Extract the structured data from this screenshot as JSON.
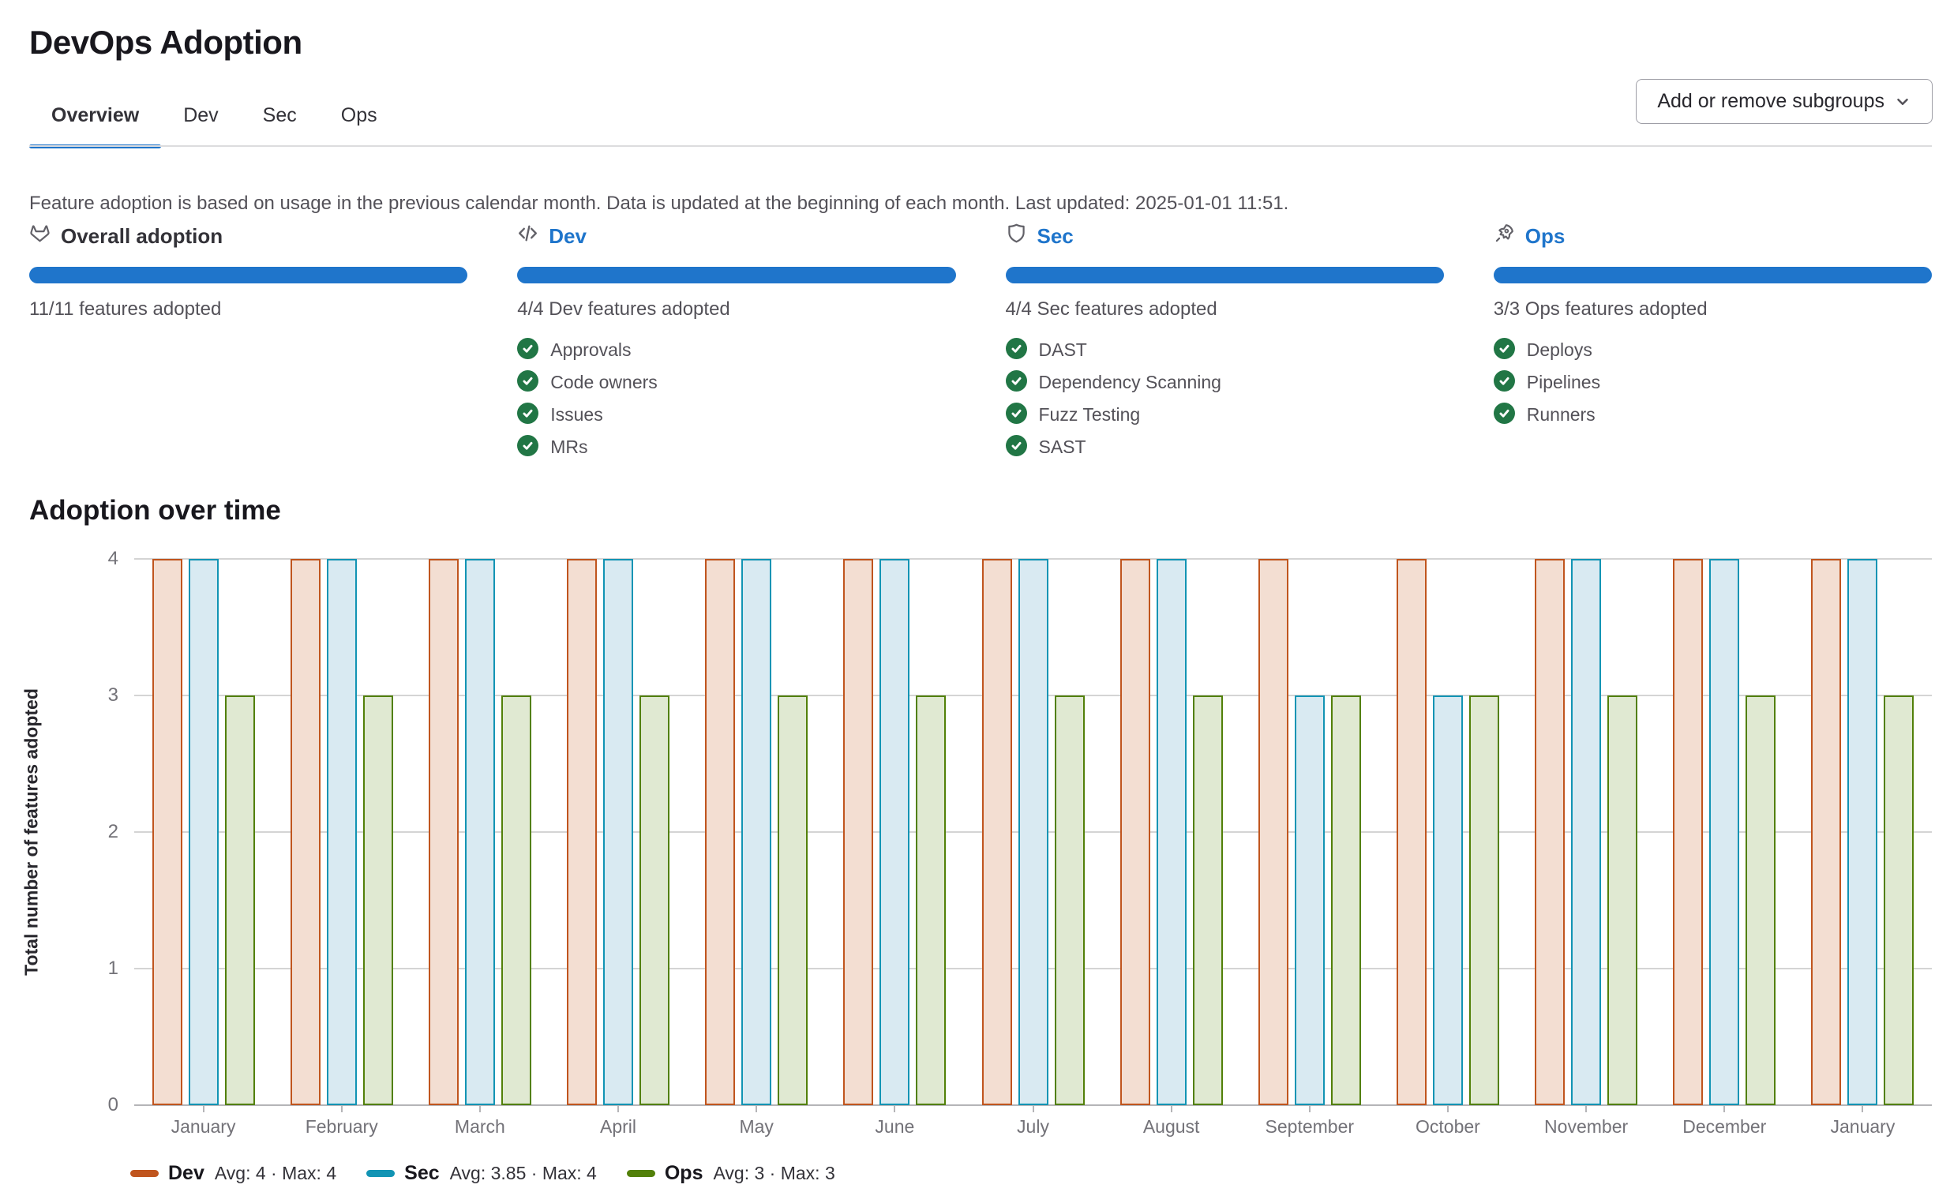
{
  "page": {
    "title": "DevOps Adoption"
  },
  "tabs": {
    "items": [
      "Overview",
      "Dev",
      "Sec",
      "Ops"
    ],
    "active": "Overview"
  },
  "toolbar": {
    "add_remove_label": "Add or remove subgroups"
  },
  "info_text": "Feature adoption is based on usage in the previous calendar month. Data is updated at the beginning of each month. Last updated: 2025-01-01 11:51.",
  "summary": {
    "columns": [
      {
        "id": "overall",
        "title": "Overall adoption",
        "icon": "tanuki-icon",
        "is_link": false,
        "progress_percent": 100,
        "count_label": "11/11 features adopted",
        "features": []
      },
      {
        "id": "dev",
        "title": "Dev",
        "icon": "code-icon",
        "is_link": true,
        "progress_percent": 100,
        "count_label": "4/4 Dev features adopted",
        "features": [
          "Approvals",
          "Code owners",
          "Issues",
          "MRs"
        ]
      },
      {
        "id": "sec",
        "title": "Sec",
        "icon": "shield-icon",
        "is_link": true,
        "progress_percent": 100,
        "count_label": "4/4 Sec features adopted",
        "features": [
          "DAST",
          "Dependency Scanning",
          "Fuzz Testing",
          "SAST"
        ]
      },
      {
        "id": "ops",
        "title": "Ops",
        "icon": "rocket-icon",
        "is_link": true,
        "progress_percent": 100,
        "count_label": "3/3 Ops features adopted",
        "features": [
          "Deploys",
          "Pipelines",
          "Runners"
        ]
      }
    ]
  },
  "chart_section": {
    "title": "Adoption over time"
  },
  "chart_data": {
    "type": "bar",
    "title": "Adoption over time",
    "xlabel": "",
    "ylabel": "Total number of features adopted",
    "ylim": [
      0,
      4
    ],
    "yticks": [
      0,
      1,
      2,
      3,
      4
    ],
    "grid": true,
    "legend_position": "bottom-left",
    "categories": [
      "January",
      "February",
      "March",
      "April",
      "May",
      "June",
      "July",
      "August",
      "September",
      "October",
      "November",
      "December",
      "January"
    ],
    "series": [
      {
        "name": "Dev",
        "color": "#c0551e",
        "fill": "#f3ded2",
        "avg": 4,
        "max": 4,
        "legend_stats": "Avg: 4 · Max: 4",
        "values": [
          4,
          4,
          4,
          4,
          4,
          4,
          4,
          4,
          4,
          4,
          4,
          4,
          4
        ]
      },
      {
        "name": "Sec",
        "color": "#1294b4",
        "fill": "#d9eaf2",
        "avg": 3.85,
        "max": 4,
        "legend_stats": "Avg: 3.85 · Max: 4",
        "values": [
          4,
          4,
          4,
          4,
          4,
          4,
          4,
          4,
          3,
          3,
          4,
          4,
          4
        ]
      },
      {
        "name": "Ops",
        "color": "#528009",
        "fill": "#e0e9d2",
        "avg": 3,
        "max": 3,
        "legend_stats": "Avg: 3 · Max: 3",
        "values": [
          3,
          3,
          3,
          3,
          3,
          3,
          3,
          3,
          3,
          3,
          3,
          3,
          3
        ]
      }
    ]
  },
  "colors": {
    "accent_blue": "#1f75cb",
    "check_green": "#217645",
    "grid_gray": "#d4d4d4",
    "axis_text_gray": "#737278"
  }
}
